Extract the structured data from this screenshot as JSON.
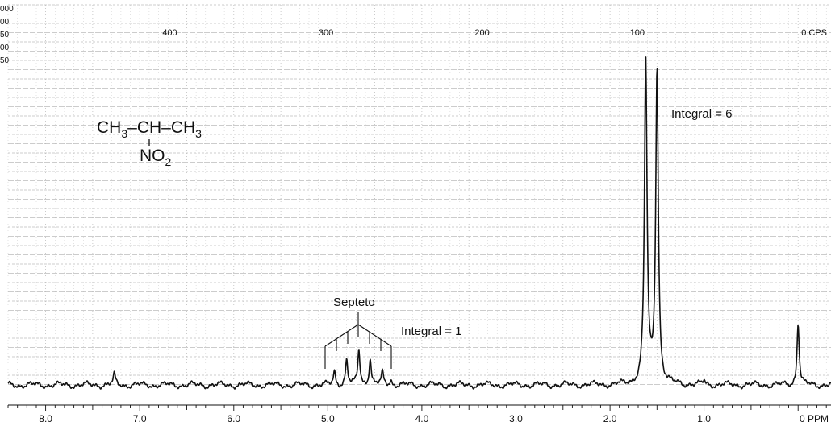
{
  "chart_data": {
    "type": "line",
    "title": "",
    "xlabel": "",
    "ylabel": "",
    "x_reversed": true,
    "xlim": [
      8.4,
      -0.35
    ],
    "ylim": [
      0,
      100
    ],
    "grid": true,
    "ppm_ticks": [
      {
        "value": 8.0,
        "label": "8.0"
      },
      {
        "value": 7.0,
        "label": "7.0"
      },
      {
        "value": 6.0,
        "label": "6.0"
      },
      {
        "value": 5.0,
        "label": "5.0"
      },
      {
        "value": 4.0,
        "label": "4.0"
      },
      {
        "value": 3.0,
        "label": "3.0"
      },
      {
        "value": 2.0,
        "label": "2.0"
      },
      {
        "value": 1.0,
        "label": "1.0"
      },
      {
        "value": 0.0,
        "label": "0 PPM"
      }
    ],
    "cps_ticks": [
      {
        "value": 6.68,
        "label": "400"
      },
      {
        "value": 5.02,
        "label": "300"
      },
      {
        "value": 3.36,
        "label": "200"
      },
      {
        "value": 1.71,
        "label": "100"
      },
      {
        "value": 0.0,
        "label": "0 CPS"
      }
    ],
    "left_scale_labels": [
      "000",
      "00",
      "50",
      "00",
      "50"
    ],
    "series": [
      {
        "peaks": [
          {
            "ppm": 1.62,
            "height": 98
          },
          {
            "ppm": 1.5,
            "height": 95
          },
          {
            "ppm": 4.93,
            "height": 4
          },
          {
            "ppm": 4.8,
            "height": 7.5
          },
          {
            "ppm": 4.67,
            "height": 10.5
          },
          {
            "ppm": 4.55,
            "height": 8
          },
          {
            "ppm": 4.42,
            "height": 3.5
          },
          {
            "ppm": 4.33,
            "height": 1.5
          },
          {
            "ppm": 7.27,
            "height": 3
          },
          {
            "ppm": 0.0,
            "height": 19
          },
          {
            "ppm": 1.0,
            "height": 1.2
          }
        ]
      }
    ],
    "annotations": {
      "formula_line1": [
        "CH",
        "3",
        "–CH–CH",
        "3"
      ],
      "formula_line2": [
        "NO",
        "2"
      ],
      "integral_6": "Integral = 6",
      "integral_1": "Integral = 1",
      "septet": "Septeto"
    }
  }
}
